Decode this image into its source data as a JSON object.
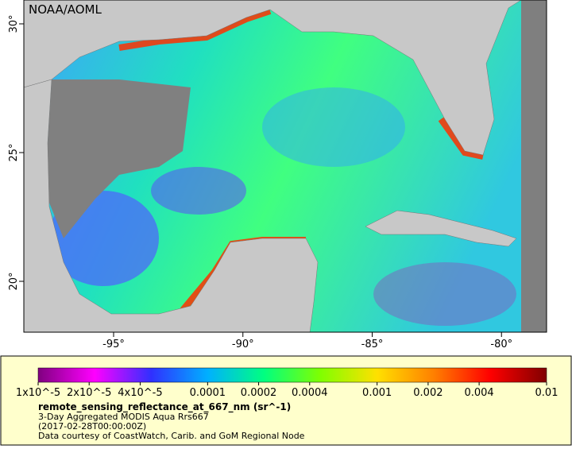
{
  "map": {
    "credit": "NOAA/AOML",
    "xticks": [
      {
        "value": -95,
        "label": "-95°"
      },
      {
        "value": -90,
        "label": "-90°"
      },
      {
        "value": -85,
        "label": "-85°"
      },
      {
        "value": -80,
        "label": "-80°"
      }
    ],
    "yticks": [
      {
        "value": 30,
        "label": "30°"
      },
      {
        "value": 25,
        "label": "25°"
      },
      {
        "value": 20,
        "label": "20°"
      }
    ],
    "colorbar": {
      "log_scale": true,
      "lim": [
        1e-05,
        0.01
      ],
      "colors": [
        "#800080",
        "#ff00ff",
        "#3030ff",
        "#00b0ff",
        "#00ff80",
        "#80ff00",
        "#ffe000",
        "#ff8000",
        "#ff0000",
        "#800000"
      ],
      "ticks": [
        {
          "value": 1e-05,
          "label": "1x10^-5"
        },
        {
          "value": 2e-05,
          "label": "2x10^-5"
        },
        {
          "value": 4e-05,
          "label": "4x10^-5"
        },
        {
          "value": 0.0001,
          "label": "0.0001"
        },
        {
          "value": 0.0002,
          "label": "0.0002"
        },
        {
          "value": 0.0004,
          "label": "0.0004"
        },
        {
          "value": 0.001,
          "label": "0.001"
        },
        {
          "value": 0.002,
          "label": "0.002"
        },
        {
          "value": 0.004,
          "label": "0.004"
        },
        {
          "value": 0.01,
          "label": "0.01"
        }
      ]
    },
    "variable": "remote_sensing_reflectance_at_667_nm (sr^-1)",
    "description": "3-Day Aggregated MODIS Aqua Rrs667",
    "time": "(2017-02-28T00:00:00Z)",
    "source": "Data courtesy of CoastWatch, Carib. and GoM Regional Node"
  }
}
